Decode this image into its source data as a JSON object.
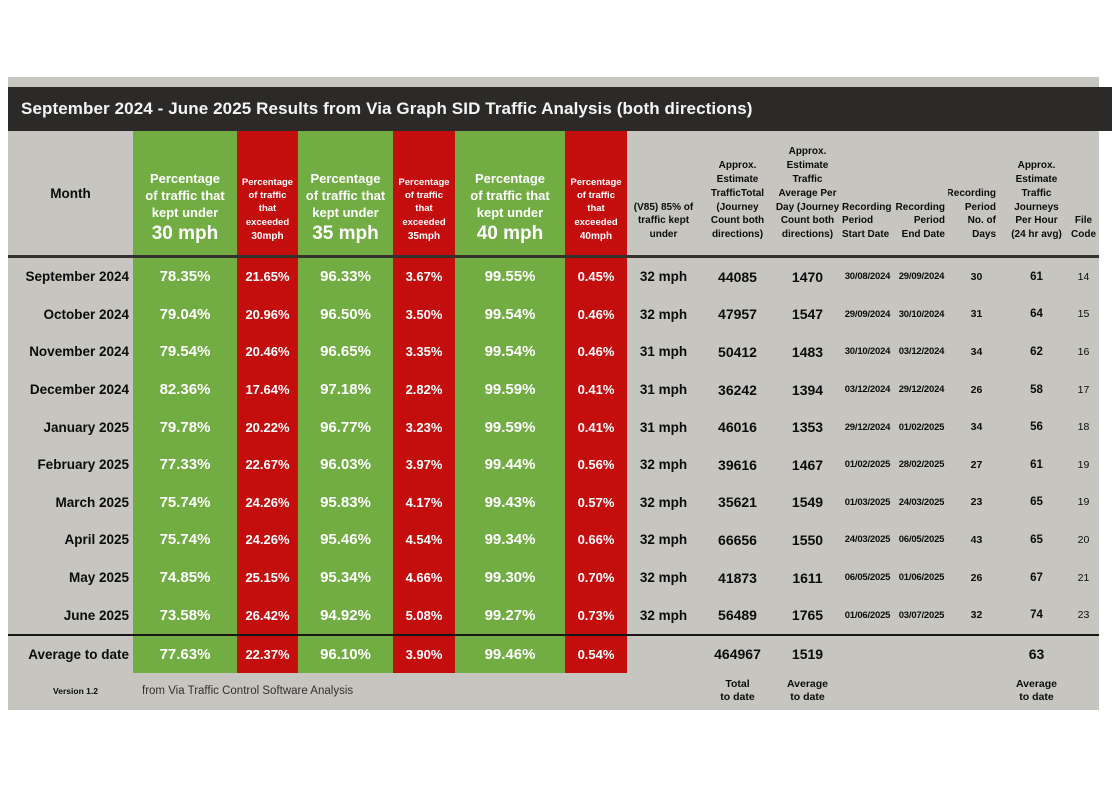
{
  "title": "September 2024 - June 2025 Results from Via Graph SID Traffic Analysis (both directions)",
  "colors": {
    "green": "#72ad44",
    "red": "#c40e0e",
    "table_bg": "#c6c5bf",
    "title_bg": "#2b2a28"
  },
  "header": {
    "month": "Month",
    "kept_label": "Percentage\nof traffic that\nkept under",
    "exceeded_label": "Percentage\nof traffic\nthat\nexceeded",
    "kept_speeds": [
      "30 mph",
      "35 mph",
      "40 mph"
    ],
    "exceeded_speeds": [
      "30mph",
      "35mph",
      "40mph"
    ],
    "v85": "(V85) 85% of\ntraffic kept\nunder",
    "total": "Approx.\nEstimate\nTrafficTotal\n(Journey\nCount both\ndirections)",
    "avg_per_day": "Approx.\nEstimate\nTraffic\nAverage Per\nDay (Journey\nCount both\ndirections)",
    "start_date": "Recording\nPeriod\nStart Date",
    "end_date": "Recording\nPeriod\nEnd Date",
    "days": "Recording\nPeriod\nNo. of\nDays",
    "per_hour": "Approx.\nEstimate\nTraffic\nJourneys\nPer Hour\n(24 hr avg)",
    "file_code": "File\nCode"
  },
  "rows": [
    {
      "month": "September 2024",
      "u30": "78.35%",
      "e30": "21.65%",
      "u35": "96.33%",
      "e35": "3.67%",
      "u40": "99.55%",
      "e40": "0.45%",
      "v85": "32 mph",
      "total": "44085",
      "avg": "1470",
      "start": "30/08/2024",
      "end": "29/09/2024",
      "days": "30",
      "ph": "61",
      "file": "14"
    },
    {
      "month": "October 2024",
      "u30": "79.04%",
      "e30": "20.96%",
      "u35": "96.50%",
      "e35": "3.50%",
      "u40": "99.54%",
      "e40": "0.46%",
      "v85": "32 mph",
      "total": "47957",
      "avg": "1547",
      "start": "29/09/2024",
      "end": "30/10/2024",
      "days": "31",
      "ph": "64",
      "file": "15"
    },
    {
      "month": "November 2024",
      "u30": "79.54%",
      "e30": "20.46%",
      "u35": "96.65%",
      "e35": "3.35%",
      "u40": "99.54%",
      "e40": "0.46%",
      "v85": "31 mph",
      "total": "50412",
      "avg": "1483",
      "start": "30/10/2024",
      "end": "03/12/2024",
      "days": "34",
      "ph": "62",
      "file": "16"
    },
    {
      "month": "December 2024",
      "u30": "82.36%",
      "e30": "17.64%",
      "u35": "97.18%",
      "e35": "2.82%",
      "u40": "99.59%",
      "e40": "0.41%",
      "v85": "31 mph",
      "total": "36242",
      "avg": "1394",
      "start": "03/12/2024",
      "end": "29/12/2024",
      "days": "26",
      "ph": "58",
      "file": "17"
    },
    {
      "month": "January 2025",
      "u30": "79.78%",
      "e30": "20.22%",
      "u35": "96.77%",
      "e35": "3.23%",
      "u40": "99.59%",
      "e40": "0.41%",
      "v85": "31 mph",
      "total": "46016",
      "avg": "1353",
      "start": "29/12/2024",
      "end": "01/02/2025",
      "days": "34",
      "ph": "56",
      "file": "18"
    },
    {
      "month": "February 2025",
      "u30": "77.33%",
      "e30": "22.67%",
      "u35": "96.03%",
      "e35": "3.97%",
      "u40": "99.44%",
      "e40": "0.56%",
      "v85": "32 mph",
      "total": "39616",
      "avg": "1467",
      "start": "01/02/2025",
      "end": "28/02/2025",
      "days": "27",
      "ph": "61",
      "file": "19"
    },
    {
      "month": "March 2025",
      "u30": "75.74%",
      "e30": "24.26%",
      "u35": "95.83%",
      "e35": "4.17%",
      "u40": "99.43%",
      "e40": "0.57%",
      "v85": "32 mph",
      "total": "35621",
      "avg": "1549",
      "start": "01/03/2025",
      "end": "24/03/2025",
      "days": "23",
      "ph": "65",
      "file": "19"
    },
    {
      "month": "April 2025",
      "u30": "75.74%",
      "e30": "24.26%",
      "u35": "95.46%",
      "e35": "4.54%",
      "u40": "99.34%",
      "e40": "0.66%",
      "v85": "32 mph",
      "total": "66656",
      "avg": "1550",
      "start": "24/03/2025",
      "end": "06/05/2025",
      "days": "43",
      "ph": "65",
      "file": "20"
    },
    {
      "month": "May 2025",
      "u30": "74.85%",
      "e30": "25.15%",
      "u35": "95.34%",
      "e35": "4.66%",
      "u40": "99.30%",
      "e40": "0.70%",
      "v85": "32 mph",
      "total": "41873",
      "avg": "1611",
      "start": "06/05/2025",
      "end": "01/06/2025",
      "days": "26",
      "ph": "67",
      "file": "21"
    },
    {
      "month": "June 2025",
      "u30": "73.58%",
      "e30": "26.42%",
      "u35": "94.92%",
      "e35": "5.08%",
      "u40": "99.27%",
      "e40": "0.73%",
      "v85": "32 mph",
      "total": "56489",
      "avg": "1765",
      "start": "01/06/2025",
      "end": "03/07/2025",
      "days": "32",
      "ph": "74",
      "file": "23"
    }
  ],
  "average": {
    "label": "Average to date",
    "u30": "77.63%",
    "e30": "22.37%",
    "u35": "96.10%",
    "e35": "3.90%",
    "u40": "99.46%",
    "e40": "0.54%",
    "total": "464967",
    "avg": "1519",
    "ph": "63"
  },
  "footer": {
    "version": "Version 1.2",
    "source": "from Via Traffic Control Software Analysis",
    "total_label": "Total\nto date",
    "avg_label": "Average\nto date",
    "per_hour_label": "Average\nto date"
  }
}
